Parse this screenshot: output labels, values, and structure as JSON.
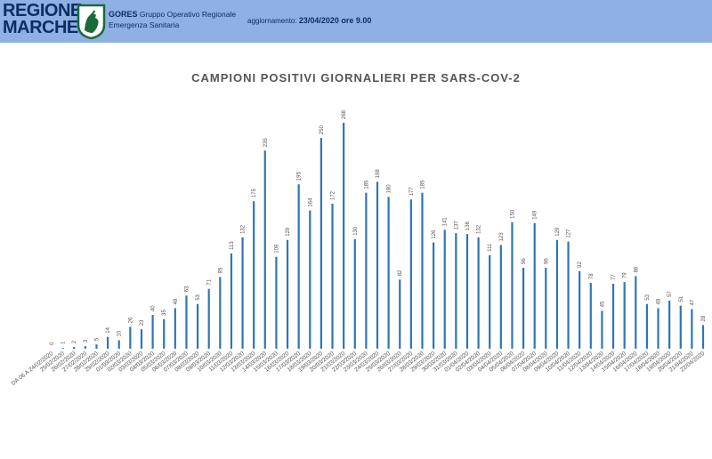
{
  "header": {
    "logo_line1": "REGIONE",
    "logo_line2": "MARCHE",
    "org_acronym": "GORES",
    "org_name_line1": "Gruppo Operativo Regionale",
    "org_name_line2": "Emergenza Sanitaria",
    "update_label": "aggiornamento:",
    "update_value": "23/04/2020 ore 9.00",
    "bg_color": "#8fb0e2",
    "text_color": "#0b2e63"
  },
  "chart_data": {
    "type": "bar",
    "title": "CAMPIONI POSITIVI GIORNALIERI PER SARS-COV-2",
    "bar_color": "#2e75b6",
    "grid": false,
    "legend": "none",
    "ylim": [
      0,
      268
    ],
    "categories": [
      "DA 06 A 24/02/2020",
      "25/02/2020",
      "26/02/2020",
      "27/02/2020",
      "28/02/2020",
      "29/02/2020",
      "01/03/2020",
      "02/03/2020",
      "03/03/2020",
      "04/03/2020",
      "05/03/2020",
      "06/03/2020",
      "07/03/2020",
      "08/03/2020",
      "09/03/2020",
      "10/03/2020",
      "11/03/2020",
      "12/03/2020",
      "13/03/2020",
      "14/03/2020",
      "15/03/2020",
      "16/03/2020",
      "17/03/2020",
      "18/03/2020",
      "19/03/2020",
      "20/03/2020",
      "21/03/2020",
      "22/03/2020",
      "23/03/2020",
      "24/03/2020",
      "25/03/2020",
      "26/03/2020",
      "27/03/2020",
      "28/03/2020",
      "29/03/2020",
      "30/03/2020",
      "31/03/2020",
      "01/04/2020",
      "02/04/2020",
      "03/04/2020",
      "04/04/2020",
      "05/04/2020",
      "06/04/2020",
      "07/04/2020",
      "08/04/2020",
      "09/04/2020",
      "10/04/2020",
      "11/04/2020",
      "12/04/2020",
      "13/04/2020",
      "14/04/2020",
      "15/04/2020",
      "16/04/2020",
      "17/04/2020",
      "18/04/2020",
      "19/04/2020",
      "20/04/2020",
      "21/04/2020",
      "22/04/2020"
    ],
    "values": [
      0,
      1,
      2,
      3,
      5,
      14,
      10,
      26,
      23,
      40,
      35,
      48,
      63,
      53,
      71,
      85,
      113,
      132,
      175,
      235,
      109,
      129,
      195,
      164,
      250,
      172,
      268,
      130,
      185,
      198,
      180,
      82,
      177,
      185,
      126,
      141,
      137,
      136,
      132,
      111,
      123,
      150,
      96,
      149,
      96,
      129,
      127,
      92,
      78,
      45,
      77,
      79,
      86,
      53,
      48,
      57,
      51,
      47,
      28
    ]
  }
}
